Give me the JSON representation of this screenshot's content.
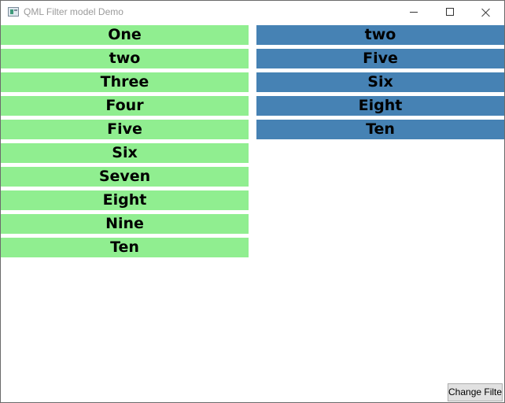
{
  "window": {
    "title": "QML Filter model Demo",
    "icon": "app-window-icon"
  },
  "colors": {
    "left_item_bg": "#90ee90",
    "right_item_bg": "#4682b4"
  },
  "left_list": {
    "items": [
      "One",
      "two",
      "Three",
      "Four",
      "Five",
      "Six",
      "Seven",
      "Eight",
      "Nine",
      "Ten"
    ]
  },
  "right_list": {
    "items": [
      "two",
      "Five",
      "Six",
      "Eight",
      "Ten"
    ]
  },
  "toolbar": {
    "change_filter_label": "Change Filter"
  }
}
